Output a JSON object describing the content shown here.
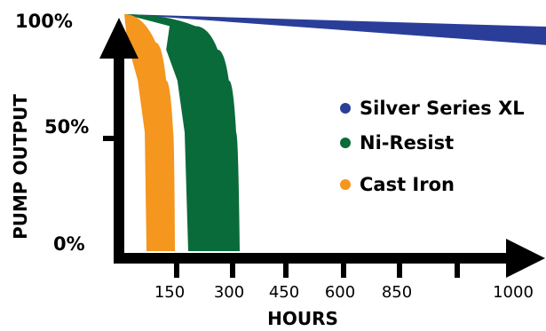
{
  "chart_data": {
    "type": "area",
    "xlabel": "HOURS",
    "ylabel": "PUMP OUTPUT",
    "y_ticks": [
      "0%",
      "50%",
      "100%"
    ],
    "x_ticks": [
      "150",
      "300",
      "450",
      "600",
      "850",
      "1000"
    ],
    "ylim": [
      0,
      100
    ],
    "legend_position": "right",
    "series": [
      {
        "name": "Silver Series XL",
        "color": "#2a3e99",
        "points": [
          {
            "x": 0,
            "y": 100
          },
          {
            "x": 1000,
            "y": 87
          }
        ]
      },
      {
        "name": "Ni-Resist",
        "color": "#0a6b3a",
        "points": [
          {
            "x": 0,
            "y": 100
          },
          {
            "x": 200,
            "y": 95
          },
          {
            "x": 260,
            "y": 85
          },
          {
            "x": 290,
            "y": 72
          },
          {
            "x": 310,
            "y": 50
          },
          {
            "x": 320,
            "y": 0
          }
        ]
      },
      {
        "name": "Cast Iron",
        "color": "#f5961e",
        "points": [
          {
            "x": 0,
            "y": 100
          },
          {
            "x": 90,
            "y": 88
          },
          {
            "x": 120,
            "y": 72
          },
          {
            "x": 140,
            "y": 50
          },
          {
            "x": 145,
            "y": 0
          }
        ]
      }
    ]
  }
}
